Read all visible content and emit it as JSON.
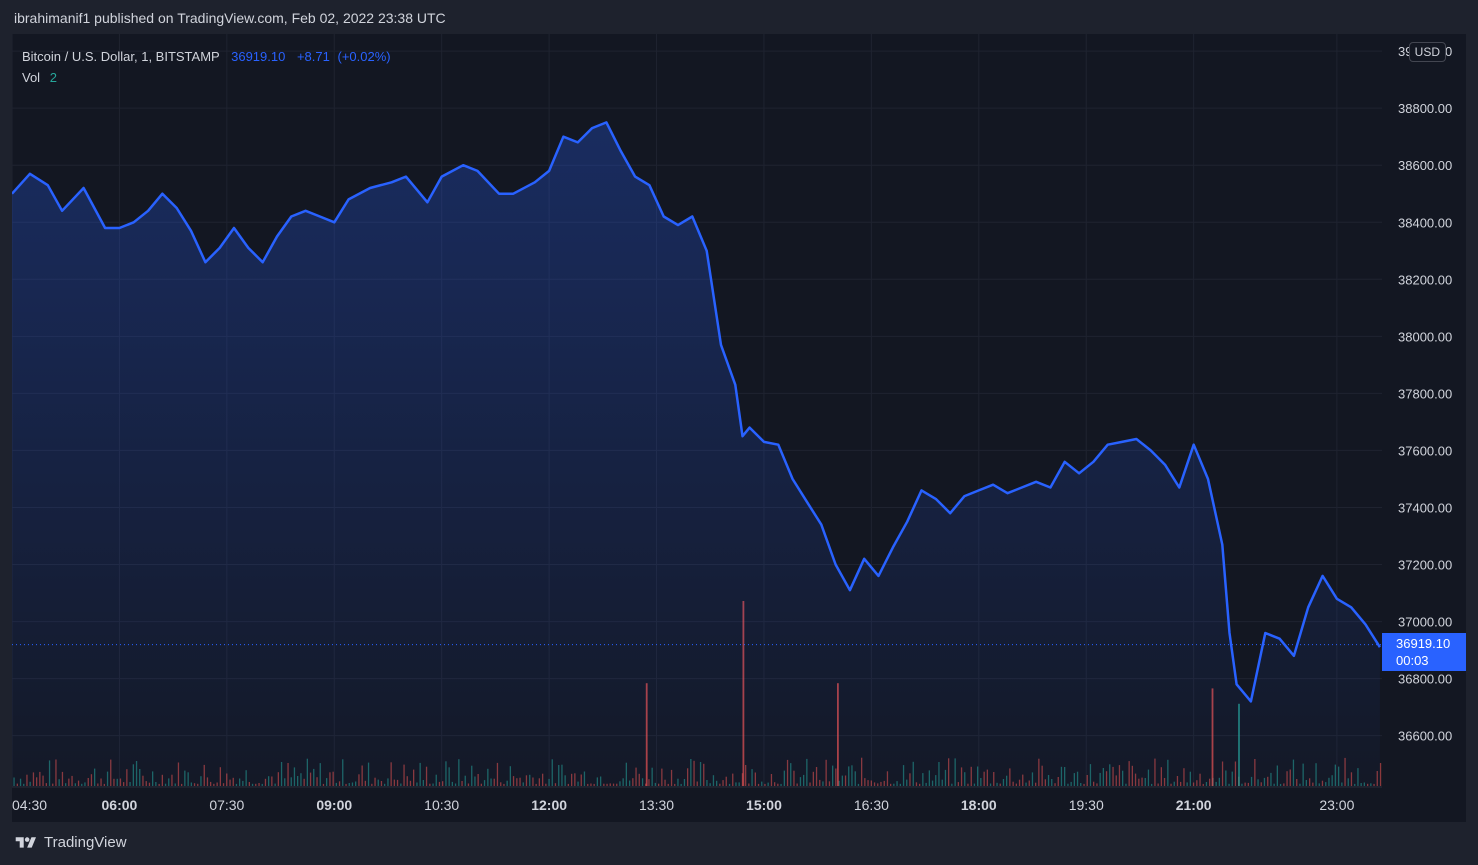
{
  "header": {
    "published_text": "ibrahimanif1 published on TradingView.com, Feb 02, 2022 23:38 UTC"
  },
  "legend": {
    "symbol": "Bitcoin / U.S. Dollar, 1, BITSTAMP",
    "price": "36919.10",
    "change": "+8.71",
    "change_pct": "(+0.02%)",
    "vol_label": "Vol",
    "vol_value": "2"
  },
  "currency_button": "USD",
  "last_price_tag": {
    "price": "36919.10",
    "countdown": "00:03"
  },
  "footer": {
    "brand": "TradingView"
  },
  "colors": {
    "line": "#2962ff",
    "up_volume": "#26a69a",
    "down_volume": "#ef5350",
    "background": "#131722"
  },
  "chart_data": {
    "type": "area",
    "title": "Bitcoin / U.S. Dollar, 1, BITSTAMP",
    "x_unit": "hours (UTC, Feb 02 2022)",
    "xlim": [
      4.5,
      23.63
    ],
    "ylim": [
      36420,
      39060
    ],
    "x_ticks": [
      {
        "label": "04:30",
        "value": 4.5
      },
      {
        "label": "06:00",
        "value": 6.0
      },
      {
        "label": "07:30",
        "value": 7.5
      },
      {
        "label": "09:00",
        "value": 9.0
      },
      {
        "label": "10:30",
        "value": 10.5
      },
      {
        "label": "12:00",
        "value": 12.0
      },
      {
        "label": "13:30",
        "value": 13.5
      },
      {
        "label": "15:00",
        "value": 15.0
      },
      {
        "label": "16:30",
        "value": 16.5
      },
      {
        "label": "18:00",
        "value": 18.0
      },
      {
        "label": "19:30",
        "value": 19.5
      },
      {
        "label": "21:00",
        "value": 21.0
      },
      {
        "label": "23:00",
        "value": 23.0
      }
    ],
    "y_ticks": [
      "39000.00",
      "38800.00",
      "38600.00",
      "38400.00",
      "38200.00",
      "38000.00",
      "37800.00",
      "37600.00",
      "37400.00",
      "37200.00",
      "37000.00",
      "36800.00",
      "36600.00"
    ],
    "last_price": 36919.1,
    "series": [
      {
        "type": "line",
        "x": [
          4.5,
          4.75,
          5.0,
          5.2,
          5.5,
          5.8,
          6.0,
          6.2,
          6.4,
          6.6,
          6.8,
          7.0,
          7.2,
          7.4,
          7.6,
          7.8,
          8.0,
          8.2,
          8.4,
          8.6,
          8.8,
          9.0,
          9.2,
          9.5,
          9.8,
          10.0,
          10.3,
          10.5,
          10.8,
          11.0,
          11.3,
          11.5,
          11.8,
          12.0,
          12.2,
          12.4,
          12.6,
          12.8,
          13.0,
          13.2,
          13.4,
          13.6,
          13.8,
          14.0,
          14.2,
          14.4,
          14.6,
          14.7,
          14.8,
          15.0,
          15.2,
          15.4,
          15.6,
          15.8,
          16.0,
          16.2,
          16.4,
          16.6,
          16.8,
          17.0,
          17.2,
          17.4,
          17.6,
          17.8,
          18.0,
          18.2,
          18.4,
          18.6,
          18.8,
          19.0,
          19.2,
          19.4,
          19.6,
          19.8,
          20.0,
          20.2,
          20.4,
          20.6,
          20.8,
          21.0,
          21.2,
          21.4,
          21.5,
          21.6,
          21.8,
          22.0,
          22.2,
          22.4,
          22.6,
          22.8,
          23.0,
          23.2,
          23.4,
          23.6
        ],
        "values": [
          38500,
          38570,
          38530,
          38440,
          38520,
          38380,
          38380,
          38400,
          38440,
          38500,
          38450,
          38370,
          38260,
          38310,
          38380,
          38310,
          38260,
          38350,
          38420,
          38440,
          38420,
          38400,
          38480,
          38520,
          38540,
          38560,
          38470,
          38560,
          38600,
          38580,
          38500,
          38500,
          38540,
          38580,
          38700,
          38680,
          38730,
          38750,
          38650,
          38560,
          38530,
          38420,
          38390,
          38420,
          38300,
          37970,
          37830,
          37650,
          37680,
          37630,
          37620,
          37500,
          37420,
          37340,
          37200,
          37110,
          37220,
          37160,
          37260,
          37350,
          37460,
          37430,
          37380,
          37440,
          37460,
          37480,
          37450,
          37470,
          37490,
          37470,
          37560,
          37520,
          37560,
          37620,
          37630,
          37640,
          37600,
          37550,
          37470,
          37620,
          37500,
          37270,
          36960,
          36780,
          36720,
          36960,
          36940,
          36880,
          37050,
          37160,
          37080,
          37050,
          36990,
          36910
        ]
      }
    ],
    "volume": {
      "label": "Vol",
      "spikes": [
        {
          "x": 13.35,
          "value": 100,
          "color": "down"
        },
        {
          "x": 14.7,
          "value": 180,
          "color": "down"
        },
        {
          "x": 16.02,
          "value": 100,
          "color": "down"
        },
        {
          "x": 21.25,
          "value": 95,
          "color": "down"
        },
        {
          "x": 21.62,
          "value": 80,
          "color": "up"
        }
      ]
    }
  }
}
